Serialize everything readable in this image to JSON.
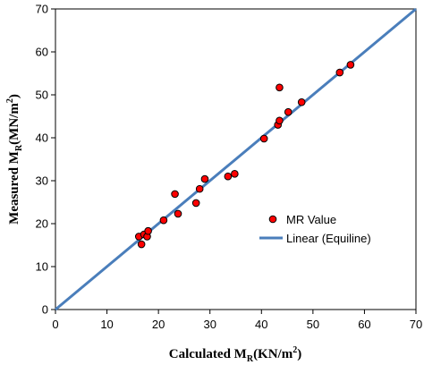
{
  "chart_data": {
    "type": "scatter",
    "title": "",
    "xlabel": {
      "prefix": "Calculated M",
      "sub": "R",
      "unit_open": "(KN/m",
      "sup": "2",
      "unit_close": ")"
    },
    "ylabel": {
      "prefix": "Measured M",
      "sub": "R",
      "unit_open": "(MN/m",
      "sup": "2",
      "unit_close": ")"
    },
    "xlim": [
      0,
      70
    ],
    "ylim": [
      0,
      70
    ],
    "xticks": [
      "0",
      "10",
      "20",
      "30",
      "40",
      "50",
      "60",
      "70"
    ],
    "yticks": [
      "0",
      "10",
      "20",
      "30",
      "40",
      "50",
      "60",
      "70"
    ],
    "grid": false,
    "legend_position": "center-right",
    "series": [
      {
        "name": "MR Value",
        "kind": "scatter",
        "color": "#ff0000",
        "edge_color": "#000000",
        "points": [
          [
            16.2,
            17.0
          ],
          [
            16.7,
            15.2
          ],
          [
            17.2,
            17.5
          ],
          [
            17.8,
            17.0
          ],
          [
            18.0,
            18.3
          ],
          [
            21.0,
            20.8
          ],
          [
            23.2,
            26.9
          ],
          [
            23.8,
            22.3
          ],
          [
            27.3,
            24.8
          ],
          [
            28.0,
            28.1
          ],
          [
            29.0,
            30.4
          ],
          [
            33.5,
            31.0
          ],
          [
            34.8,
            31.6
          ],
          [
            40.5,
            39.8
          ],
          [
            43.2,
            43.0
          ],
          [
            43.5,
            44.0
          ],
          [
            43.5,
            51.7
          ],
          [
            45.2,
            46.0
          ],
          [
            47.8,
            48.3
          ],
          [
            55.2,
            55.2
          ],
          [
            57.3,
            57.0
          ]
        ]
      },
      {
        "name": "Linear (Equiline)",
        "kind": "line",
        "color": "#4a7ebb",
        "x": [
          0,
          70
        ],
        "y": [
          0,
          70
        ]
      }
    ]
  }
}
